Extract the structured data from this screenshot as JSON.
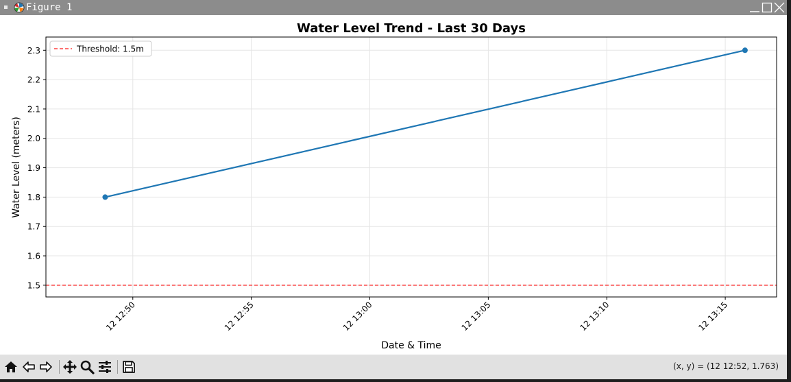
{
  "window": {
    "title": "Figure 1"
  },
  "chart_data": {
    "type": "line",
    "title": "Water Level Trend - Last 30 Days",
    "xlabel": "Date & Time",
    "ylabel": "Water Level (meters)",
    "x": [
      "12 12:48:50",
      "12 13:15:50"
    ],
    "series": [
      {
        "values": [
          1.8,
          2.3
        ],
        "color": "#1f77b4",
        "marker": "circle"
      }
    ],
    "threshold": {
      "label": "Threshold: 1.5m",
      "value": 1.5,
      "color": "#ff0000",
      "style": "dashed"
    },
    "x_ticks": [
      {
        "time": "12:50",
        "label": "12 12:50"
      },
      {
        "time": "12:55",
        "label": "12 12:55"
      },
      {
        "time": "13:00",
        "label": "12 13:00"
      },
      {
        "time": "13:05",
        "label": "12 13:05"
      },
      {
        "time": "13:10",
        "label": "12 13:10"
      },
      {
        "time": "13:15",
        "label": "12 13:15"
      }
    ],
    "x_range": [
      "12 12:46:20",
      "12 13:17:10"
    ],
    "y_ticks": [
      1.5,
      1.6,
      1.7,
      1.8,
      1.9,
      2.0,
      2.1,
      2.2,
      2.3
    ],
    "ylim": [
      1.46,
      2.345
    ],
    "grid": true,
    "legend_position": "top-left"
  },
  "toolbar": {
    "buttons": [
      "home-icon",
      "back-icon",
      "forward-icon",
      "pan-icon",
      "zoom-icon",
      "configure-icon",
      "save-icon"
    ],
    "coords": "(x, y) = (12 12:52, 1.763)"
  }
}
